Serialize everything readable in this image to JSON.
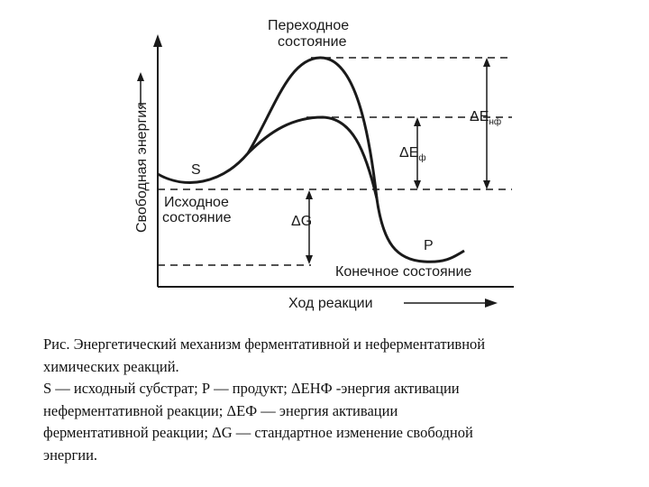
{
  "diagram": {
    "y_axis_label": "Свободная энергия",
    "x_axis_label": "Ход реакции",
    "transition_state_line1": "Переходное",
    "transition_state_line2": "состояние",
    "initial_state_line1": "Исходное",
    "initial_state_line2": "состояние",
    "final_state": "Конечное состояние",
    "substrate_label": "S",
    "product_label": "P",
    "delta_g_symbol": "ΔG",
    "delta_e_nf": {
      "main": "ΔE",
      "sub": "нф"
    },
    "delta_e_f": {
      "main": "ΔE",
      "sub": "ф"
    },
    "line_color": "#1a1a1a"
  },
  "caption": {
    "line1": "Рис.  Энергетический механизм ферментативной и неферментативной",
    "line2": "химических реакций.",
    "line3": "S — исходный субстрат; Р — продукт; ΔЕНФ -энергия активации",
    "line4": "неферментативной реакции; ΔЕФ — энергия активации",
    "line5": "ферментативной реакции; ΔG — стандартное изменение свободной",
    "line6": "энергии."
  }
}
